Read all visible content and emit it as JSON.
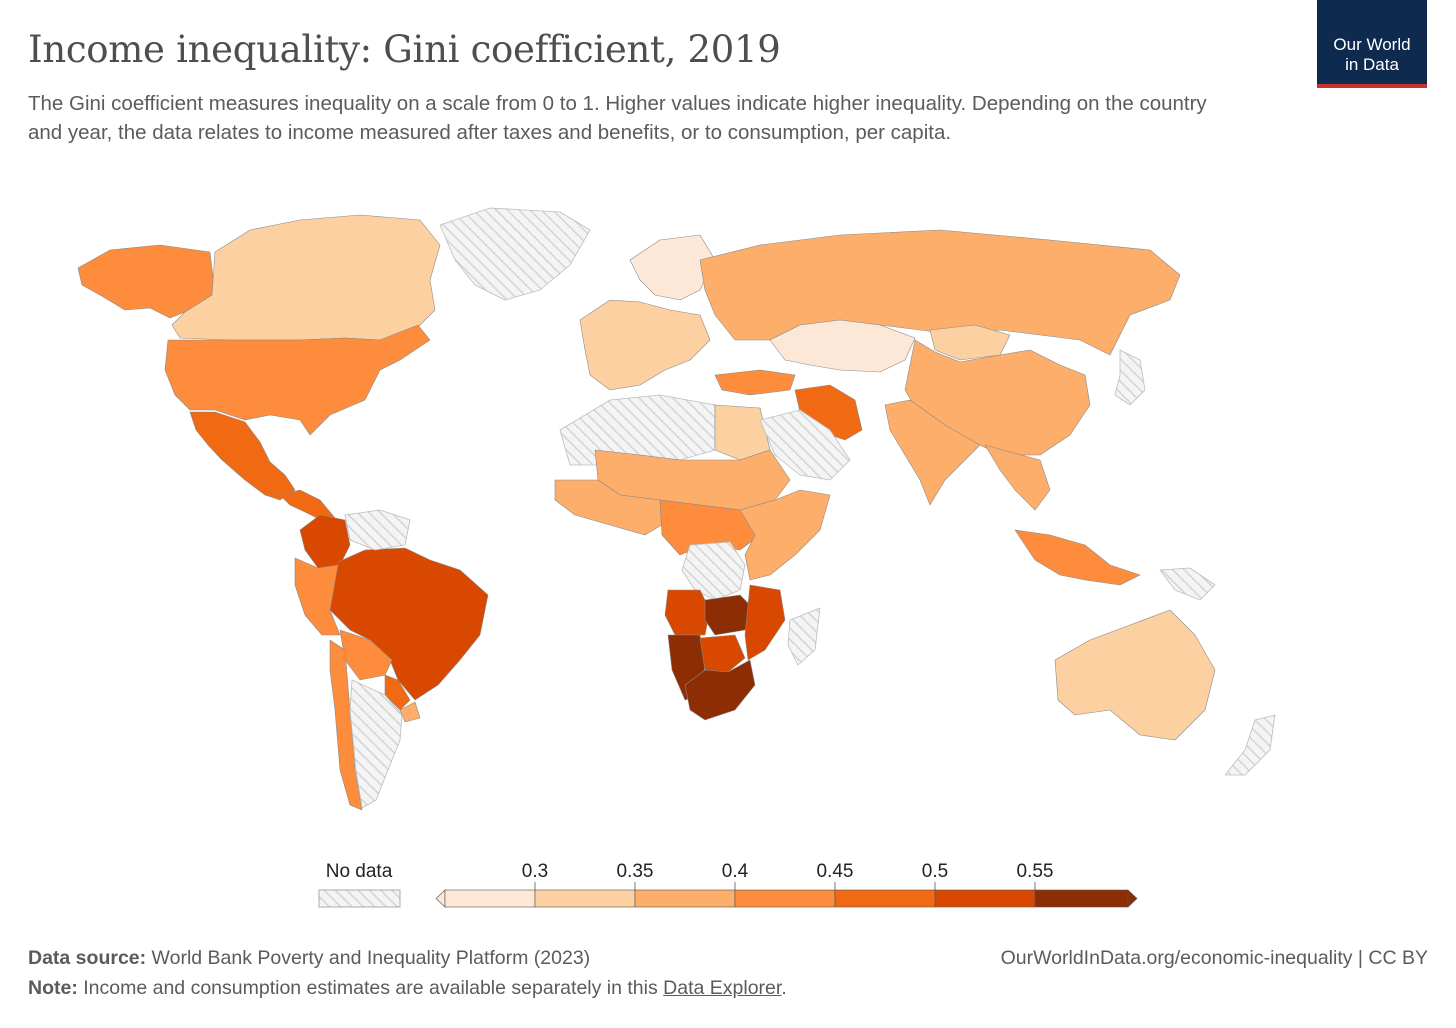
{
  "header": {
    "title": "Income inequality: Gini coefficient, 2019",
    "subtitle": "The Gini coefficient measures inequality on a scale from 0 to 1. Higher values indicate higher inequality. Depending on the country and year, the data relates to income measured after taxes and benefits, or to consumption, per capita.",
    "logo_line1": "Our World",
    "logo_line2": "in Data"
  },
  "colors": {
    "no_data": "#e6e6e6",
    "bins": [
      "#fde8d8",
      "#fdd0a2",
      "#fdae6b",
      "#fd8d3c",
      "#f16913",
      "#d94801",
      "#8c2d04"
    ],
    "logo_bg": "#0f2a4f",
    "logo_accent": "#c8312c"
  },
  "legend": {
    "no_data_label": "No data",
    "ticks": [
      "0.3",
      "0.35",
      "0.4",
      "0.45",
      "0.5",
      "0.55"
    ]
  },
  "map_regions": [
    {
      "name": "Alaska",
      "bin": 3
    },
    {
      "name": "Canada",
      "bin": 1
    },
    {
      "name": "United States",
      "bin": 3
    },
    {
      "name": "Mexico",
      "bin": 4
    },
    {
      "name": "Central America",
      "bin": 4
    },
    {
      "name": "Colombia",
      "bin": 5
    },
    {
      "name": "Brazil",
      "bin": 5
    },
    {
      "name": "Peru",
      "bin": 3
    },
    {
      "name": "Bolivia",
      "bin": 3
    },
    {
      "name": "Chile",
      "bin": 3
    },
    {
      "name": "Paraguay",
      "bin": 4
    },
    {
      "name": "Uruguay",
      "bin": 2
    },
    {
      "name": "Argentina",
      "bin": -1
    },
    {
      "name": "Venezuela",
      "bin": -1
    },
    {
      "name": "Greenland",
      "bin": -1
    },
    {
      "name": "Western Europe",
      "bin": 1
    },
    {
      "name": "Nordics",
      "bin": 0
    },
    {
      "name": "Russia",
      "bin": 2
    },
    {
      "name": "Kazakhstan",
      "bin": 0
    },
    {
      "name": "Turkey",
      "bin": 3
    },
    {
      "name": "Iran",
      "bin": 4
    },
    {
      "name": "China",
      "bin": 2
    },
    {
      "name": "Mongolia",
      "bin": 1
    },
    {
      "name": "India",
      "bin": 2
    },
    {
      "name": "Southeast Asia",
      "bin": 2
    },
    {
      "name": "Indonesia",
      "bin": 3
    },
    {
      "name": "Australia",
      "bin": 1
    },
    {
      "name": "North Africa",
      "bin": -1
    },
    {
      "name": "Egypt",
      "bin": 1
    },
    {
      "name": "Sahel",
      "bin": 2
    },
    {
      "name": "West Africa",
      "bin": 2
    },
    {
      "name": "Central Africa",
      "bin": 3
    },
    {
      "name": "DR Congo",
      "bin": -1
    },
    {
      "name": "East Africa",
      "bin": 2
    },
    {
      "name": "Angola",
      "bin": 5
    },
    {
      "name": "Zambia",
      "bin": 6
    },
    {
      "name": "Mozambique",
      "bin": 5
    },
    {
      "name": "Namibia",
      "bin": 6
    },
    {
      "name": "Botswana",
      "bin": 5
    },
    {
      "name": "South Africa",
      "bin": 6
    },
    {
      "name": "Madagascar",
      "bin": -1
    },
    {
      "name": "Saudi Arabia",
      "bin": -1
    },
    {
      "name": "Japan",
      "bin": -1
    },
    {
      "name": "New Zealand",
      "bin": -1
    },
    {
      "name": "Papua New Guinea",
      "bin": -1
    }
  ],
  "footer": {
    "source_label": "Data source:",
    "source_text": "World Bank Poverty and Inequality Platform (2023)",
    "url": "OurWorldInData.org/economic-inequality",
    "license": "| CC BY",
    "note_label": "Note:",
    "note_text": "Income and consumption estimates are available separately in this",
    "note_link": "Data Explorer",
    "note_end": "."
  }
}
